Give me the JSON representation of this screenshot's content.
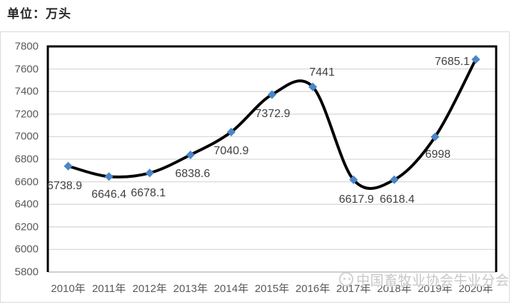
{
  "unit_title": "单位：万头",
  "watermark": {
    "text": "中国畜牧业协会牛业分会"
  },
  "chart_data": {
    "type": "line",
    "title": "单位：万头",
    "categories": [
      "2010年",
      "2011年",
      "2012年",
      "2013年",
      "2014年",
      "2015年",
      "2016年",
      "2017年",
      "2018年",
      "2019年",
      "2020年"
    ],
    "values": [
      6738.9,
      6646.4,
      6678.1,
      6838.6,
      7040.9,
      7372.9,
      7441,
      6617.9,
      6618.4,
      6998,
      7685.1
    ],
    "point_labels": [
      "6738.9",
      "6646.4",
      "6678.1",
      "6838.6",
      "7040.9",
      "7372.9",
      "7441",
      "6617.9",
      "6618.4",
      "6998",
      "7685.1"
    ],
    "xlabel": "",
    "ylabel": "",
    "ylim": [
      5800,
      7800
    ],
    "ytick_step": 200,
    "yticks": [
      "5800",
      "6000",
      "6200",
      "6400",
      "6600",
      "6800",
      "7000",
      "7200",
      "7400",
      "7600",
      "7800"
    ],
    "grid": true,
    "legend": "none",
    "line_smooth": true,
    "line_color": "#000000",
    "marker_shape": "diamond",
    "marker_color": "#4a86c8",
    "gridline_color": "#d9d9d9",
    "axis_text_color": "#595959"
  }
}
